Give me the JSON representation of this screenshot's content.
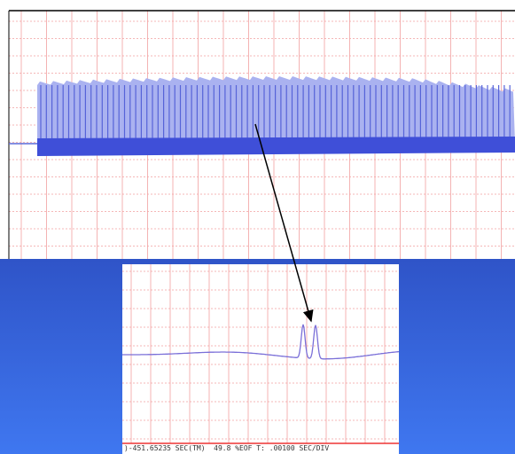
{
  "status_text": ")-451.65235 SEC(TM)  49.8 %EOF T: .00100 SEC/DIV"
}
